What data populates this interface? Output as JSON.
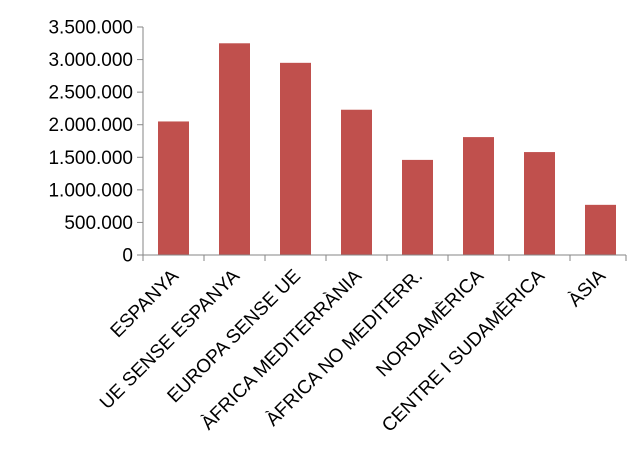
{
  "chart_data": {
    "type": "bar",
    "categories": [
      "ESPANYA",
      "UE SENSE ESPANYA",
      "EUROPA SENSE UE",
      "ÀFRICA MEDITERRÀNIA",
      "ÀFRICA NO MEDITERR.",
      "NORDAMÈRICA",
      "CENTRE I SUDAMÈRICA",
      "ÀSIA"
    ],
    "values": [
      2050000,
      3250000,
      2950000,
      2230000,
      1460000,
      1810000,
      1580000,
      770000
    ],
    "yticks": [
      0,
      500000,
      1000000,
      1500000,
      2000000,
      2500000,
      3000000,
      3500000
    ],
    "ytick_labels": [
      "0",
      "500.000",
      "1.000.000",
      "1.500.000",
      "2.000.000",
      "2.500.000",
      "3.000.000",
      "3.500.000"
    ],
    "ylim": [
      0,
      3500000
    ],
    "grid": false,
    "legend": "none",
    "bar_color": "#c0504d",
    "axis_color": "#868686"
  }
}
